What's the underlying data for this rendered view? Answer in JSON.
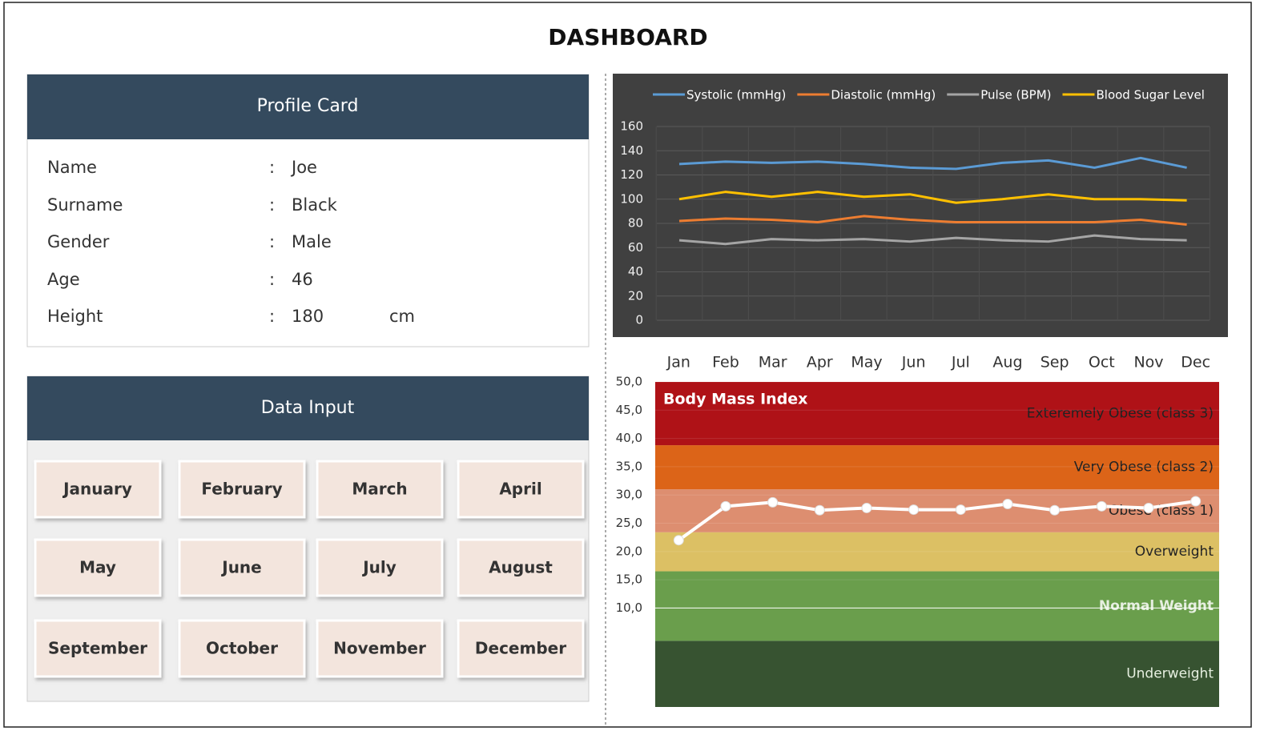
{
  "header": {
    "title": "DASHBOARD"
  },
  "profile_card": {
    "title": "Profile Card",
    "rows": [
      {
        "label": "Name",
        "separator": ":",
        "value": "Joe"
      },
      {
        "label": "Surname",
        "separator": ":",
        "value": "Black"
      },
      {
        "label": "Gender",
        "separator": ":",
        "value": "Male"
      },
      {
        "label": "Age",
        "separator": ":",
        "value": "46"
      },
      {
        "label": "Height",
        "separator": ":",
        "value": "180",
        "unit": "cm"
      }
    ]
  },
  "data_input": {
    "title": "Data Input",
    "buttons": [
      "January",
      "February",
      "March",
      "April",
      "May",
      "June",
      "July",
      "August",
      "September",
      "October",
      "November",
      "December"
    ]
  },
  "chart_data": [
    {
      "type": "line",
      "background": "#404040",
      "categories": [
        "Jan",
        "Feb",
        "Mar",
        "Apr",
        "May",
        "Jun",
        "Jul",
        "Aug",
        "Sep",
        "Oct",
        "Nov",
        "Dec"
      ],
      "series": [
        {
          "name": "Systolic (mmHg)",
          "color": "#5b9bd5",
          "values": [
            129,
            131,
            130,
            131,
            129,
            126,
            125,
            130,
            132,
            126,
            134,
            126
          ]
        },
        {
          "name": "Diastolic (mmHg)",
          "color": "#ed7d31",
          "values": [
            82,
            84,
            83,
            81,
            86,
            83,
            81,
            81,
            81,
            81,
            83,
            79
          ]
        },
        {
          "name": "Pulse (BPM)",
          "color": "#a5a5a5",
          "values": [
            66,
            63,
            67,
            66,
            67,
            65,
            68,
            66,
            65,
            70,
            67,
            66
          ]
        },
        {
          "name": "Blood Sugar Level",
          "color": "#ffc000",
          "values": [
            100,
            106,
            102,
            106,
            102,
            104,
            97,
            100,
            104,
            100,
            100,
            99
          ]
        }
      ],
      "ylim": [
        0,
        160
      ],
      "yticks": [
        0,
        20,
        40,
        60,
        80,
        100,
        120,
        140,
        160
      ],
      "grid": true,
      "legend": "top"
    },
    {
      "type": "line",
      "title": "Body Mass Index",
      "categories": [
        null,
        null,
        null,
        null,
        null,
        null,
        null,
        null,
        null,
        null,
        null,
        null
      ],
      "series": [
        {
          "name": "BMI",
          "color": "#ffffff",
          "values": [
            22,
            28.0,
            28.7,
            27.3,
            27.7,
            27.4,
            27.4,
            28.4,
            27.3,
            28.0,
            27.7,
            28.9
          ]
        }
      ],
      "bands": [
        {
          "name": "Underweight",
          "color": "#375331",
          "value": 11.7
        },
        {
          "name": "Normal Weight",
          "color": "#6a9e4c",
          "value": 12.3
        },
        {
          "name": "Overweight",
          "color": "#dcc064",
          "value": 6.9
        },
        {
          "name": "Obese (class 1)",
          "color": "#dd8e70",
          "value": 7.6
        },
        {
          "name": "Very Obese (class 2)",
          "color": "#dc6418",
          "value": 7.8
        },
        {
          "name": "Exteremely Obese (class 3)",
          "color": "#af1217",
          "value": 11.2
        }
      ],
      "ylim": [
        -7.5,
        50
      ],
      "yticks": [
        {
          "value": 10,
          "label": "10,0"
        },
        {
          "value": 15,
          "label": "15,0"
        },
        {
          "value": 20,
          "label": "20,0"
        },
        {
          "value": 25,
          "label": "25,0"
        },
        {
          "value": 30,
          "label": "30,0"
        },
        {
          "value": 35,
          "label": "35,0"
        },
        {
          "value": 40,
          "label": "40,0"
        },
        {
          "value": 45,
          "label": "45,0"
        },
        {
          "value": 50,
          "label": "50,0"
        }
      ],
      "grid": true,
      "markers": true
    }
  ]
}
